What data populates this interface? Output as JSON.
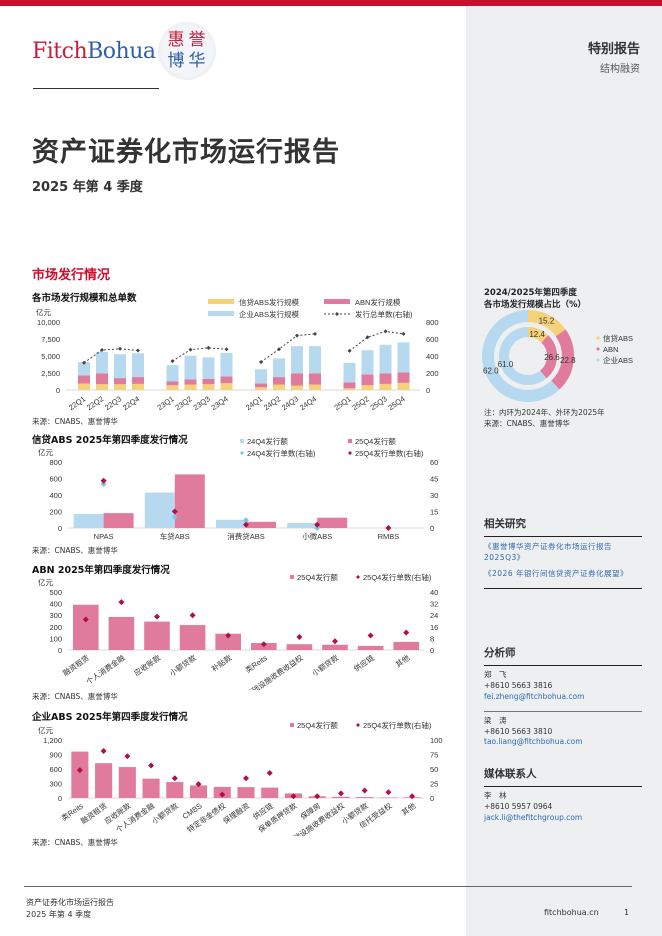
{
  "header": {
    "logo_fitch": "Fitch",
    "logo_bohua": "Bohua",
    "logo_seal": [
      "惠",
      "誉",
      "博",
      "华"
    ],
    "report_type": "特别报告",
    "report_category": "结构融资"
  },
  "title": "资产证券化市场运行报告",
  "subtitle": "2025 年第 4 季度",
  "section_title": "市场发行情况",
  "colors": {
    "brand_red": "#c8102e",
    "credit_abs": "#f5d17a",
    "abn": "#e07b9e",
    "corporate_abs": "#b6d9f0",
    "marker_2024": "#7cc4e4",
    "marker_2025": "#b0104a",
    "link": "#2e6ab0"
  },
  "source_text": "来源：CNABS、惠誉博华",
  "chart_data": [
    {
      "type": "bar",
      "stacked": true,
      "title": "各市场发行规模和总单数",
      "ylabel": "亿元",
      "ylim": [
        0,
        10000
      ],
      "yticks": [
        "10,000",
        "7,500",
        "5,000",
        "2,500",
        "0"
      ],
      "y2lim": [
        0,
        800
      ],
      "y2ticks": [
        "800",
        "600",
        "400",
        "200",
        "0"
      ],
      "categories": [
        "22Q1",
        "22Q2",
        "22Q3",
        "22Q4",
        "23Q1",
        "23Q2",
        "23Q3",
        "23Q4",
        "24Q1",
        "24Q2",
        "24Q3",
        "24Q4",
        "25Q1",
        "25Q2",
        "25Q3",
        "25Q4"
      ],
      "legend": [
        "信贷ABS发行规模",
        "ABN发行规模",
        "企业ABS发行规模",
        "发行总单数(右轴)"
      ],
      "series": [
        {
          "name": "信贷ABS发行规模",
          "values": [
            950,
            850,
            850,
            900,
            700,
            800,
            850,
            1000,
            400,
            800,
            650,
            800,
            250,
            700,
            900,
            1050
          ]
        },
        {
          "name": "ABN发行规模",
          "values": [
            1200,
            1600,
            900,
            1000,
            550,
            750,
            800,
            1000,
            550,
            1100,
            1800,
            1650,
            850,
            1600,
            1550,
            1550
          ]
        },
        {
          "name": "企业ABS发行规模",
          "values": [
            1950,
            3150,
            3500,
            3500,
            2400,
            3500,
            3150,
            3450,
            2100,
            2750,
            4000,
            4000,
            2900,
            3550,
            4200,
            4400
          ]
        },
        {
          "name": "发行总单数(右轴)",
          "axis": "right",
          "values": [
            320,
            470,
            485,
            465,
            340,
            475,
            495,
            480,
            330,
            480,
            640,
            660,
            460,
            620,
            690,
            660
          ]
        }
      ]
    },
    {
      "type": "bar",
      "title": "信贷ABS 2025年第四季度发行情况",
      "ylabel": "亿元",
      "ylim": [
        0,
        800
      ],
      "yticks": [
        "800",
        "600",
        "400",
        "200",
        "0"
      ],
      "y2lim": [
        0,
        60
      ],
      "y2ticks": [
        "60",
        "45",
        "30",
        "15",
        "0"
      ],
      "categories": [
        "NPAS",
        "车贷ABS",
        "消费贷ABS",
        "小微ABS",
        "RMBS"
      ],
      "legend": [
        "24Q4发行额",
        "25Q4发行额",
        "24Q4发行单数(右轴)",
        "25Q4发行单数(右轴)"
      ],
      "series": [
        {
          "name": "24Q4发行额",
          "values": [
            170,
            430,
            100,
            60,
            0
          ]
        },
        {
          "name": "25Q4发行额",
          "values": [
            180,
            650,
            75,
            125,
            0
          ]
        },
        {
          "name": "24Q4发行单数(右轴)",
          "axis": "right",
          "values": [
            40,
            10,
            7,
            0,
            0
          ]
        },
        {
          "name": "25Q4发行单数(右轴)",
          "axis": "right",
          "values": [
            43,
            15,
            3,
            3,
            0
          ]
        }
      ]
    },
    {
      "type": "bar",
      "title": "ABN 2025年第四季度发行情况",
      "ylabel": "亿元",
      "ylim": [
        0,
        500
      ],
      "yticks": [
        "500",
        "400",
        "300",
        "200",
        "100",
        "0"
      ],
      "y2lim": [
        0,
        40
      ],
      "y2ticks": [
        "40",
        "32",
        "24",
        "16",
        "8",
        "0"
      ],
      "categories": [
        "融资租赁",
        "个人消费金融",
        "应收账款",
        "小额贷款",
        "补贴款",
        "类Reits",
        "基础设施收费收益权",
        "小额贷款",
        "供应链",
        "其他"
      ],
      "legend": [
        "25Q4发行额",
        "25Q4发行单数(右轴)"
      ],
      "series": [
        {
          "name": "25Q4发行额",
          "values": [
            390,
            285,
            245,
            215,
            140,
            60,
            50,
            45,
            35,
            70
          ]
        },
        {
          "name": "25Q4发行单数(右轴)",
          "axis": "right",
          "values": [
            21,
            33,
            23,
            24,
            10,
            4,
            9,
            6,
            10,
            12
          ]
        }
      ]
    },
    {
      "type": "bar",
      "title": "企业ABS 2025年第四季度发行情况",
      "ylabel": "亿元",
      "ylim": [
        0,
        1200
      ],
      "yticks": [
        "1,200",
        "900",
        "600",
        "300",
        "0"
      ],
      "y2lim": [
        0,
        100
      ],
      "y2ticks": [
        "100",
        "75",
        "50",
        "25",
        "0"
      ],
      "categories": [
        "类Reits",
        "融资租赁",
        "应收账款",
        "个人消费金融",
        "小额贷款",
        "CMBS",
        "特定非金债权",
        "保理融资",
        "供应链",
        "保单质押贷款",
        "保障房",
        "基础设施收费收益权",
        "小额贷款",
        "信托受益权",
        "其他"
      ],
      "legend": [
        "25Q4发行额",
        "25Q4发行单数(右轴)"
      ],
      "series": [
        {
          "name": "25Q4发行额",
          "values": [
            960,
            720,
            640,
            400,
            330,
            260,
            230,
            225,
            215,
            95,
            35,
            25,
            20,
            10,
            15
          ]
        },
        {
          "name": "25Q4发行单数(右轴)",
          "axis": "right",
          "values": [
            48,
            81,
            72,
            56,
            34,
            24,
            6,
            34,
            43,
            3,
            3,
            8,
            13,
            10,
            3
          ]
        }
      ]
    },
    {
      "type": "pie",
      "subtype": "donut",
      "title": "2024/2025年第四季度各市场发行规模占比（%）",
      "categories": [
        "信贷ABS",
        "ABN",
        "企业ABS"
      ],
      "series": [
        {
          "name": "2024 (内环)",
          "values": [
            12.4,
            26.6,
            61.0
          ]
        },
        {
          "name": "2025 (外环)",
          "values": [
            15.2,
            22.8,
            62.0
          ]
        }
      ],
      "note": "注：内环为2024年、外环为2025年"
    }
  ],
  "sidebar": {
    "donut_title_line1": "2024/2025年第四季度",
    "donut_title_line2": "各市场发行规模占比（%）",
    "donut_note": "注：内环为2024年、外环为2025年",
    "donut_source": "来源：CNABS、惠誉博华",
    "related_heading": "相关研究",
    "related_links": [
      "《惠誉博华资产证券化市场运行报告2025Q3》",
      "《2026 年银行间信贷资产证券化展望》"
    ],
    "analysts_heading": "分析师",
    "analysts": [
      {
        "name": "郑　飞",
        "phone": "+8610 5663 3816",
        "email": "fei.zheng@fitchbohua.com"
      },
      {
        "name": "梁　涛",
        "phone": "+8610 5663 3810",
        "email": "tao.liang@fitchbohua.com"
      }
    ],
    "media_heading": "媒体联系人",
    "media": {
      "name": "李　林",
      "phone": "+8610 5957 0964",
      "email": "jack.li@thefitchgroup.com"
    }
  },
  "footer": {
    "line1": "资产证券化市场运行报告",
    "line2": "2025 年第 4 季度",
    "site": "fitchbohua.cn",
    "page": "1"
  }
}
